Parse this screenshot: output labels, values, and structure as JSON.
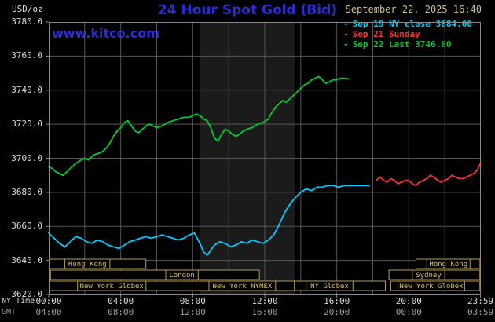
{
  "header": {
    "units_label": "USD/oz",
    "title": "24 Hour Spot Gold (Bid)",
    "datetime": "September 22, 2025 16:40",
    "watermark": "www.kitco.com",
    "legend": [
      {
        "label": "Sep 19 NY close 3684.00",
        "color": "#00ccff"
      },
      {
        "label": "Sep 21 Sunday",
        "color": "#ff3232"
      },
      {
        "label": "Sep 22 Last 3746.60",
        "color": "#00cc33"
      }
    ]
  },
  "axes": {
    "ny_time_label": "NY Time",
    "gmt_label": "GMT",
    "ny_ticks": [
      {
        "hour": 0,
        "label": "00:00"
      },
      {
        "hour": 4,
        "label": "04:00"
      },
      {
        "hour": 8,
        "label": "08:00"
      },
      {
        "hour": 12,
        "label": "12:00"
      },
      {
        "hour": 16,
        "label": "16:00"
      },
      {
        "hour": 20,
        "label": "20:00"
      },
      {
        "hour": 23.983,
        "label": "23:59"
      }
    ],
    "gmt_ticks": [
      {
        "hour": 0,
        "label": "04:00"
      },
      {
        "hour": 4,
        "label": "08:00"
      },
      {
        "hour": 8,
        "label": "12:00"
      },
      {
        "hour": 12,
        "label": "16:00"
      },
      {
        "hour": 16,
        "label": "20:00"
      },
      {
        "hour": 20,
        "label": "00:00"
      },
      {
        "hour": 23.983,
        "label": "03:59"
      }
    ],
    "y_ticks": [
      {
        "value": 3780,
        "label": "3780.0"
      },
      {
        "value": 3760,
        "label": "3760.0"
      },
      {
        "value": 3740,
        "label": "3740.0"
      },
      {
        "value": 3720,
        "label": "3720.0"
      },
      {
        "value": 3700,
        "label": "3700.0"
      },
      {
        "value": 3680,
        "label": "3680.0"
      },
      {
        "value": 3660,
        "label": "3660.0"
      },
      {
        "value": 3640,
        "label": "3640.0"
      },
      {
        "value": 3620,
        "label": "3620.0"
      }
    ]
  },
  "chart_data": {
    "type": "line",
    "title": "24 Hour Spot Gold (Bid)",
    "ylabel": "USD/oz",
    "xlabel": "NY Time (hours)",
    "xlim": [
      0,
      24
    ],
    "ylim": [
      3620,
      3780
    ],
    "x_gridline_hours": [
      2,
      4,
      6,
      8,
      10,
      12,
      14,
      16,
      18,
      20,
      22
    ],
    "grid_color": "#565656",
    "border_color": "#8a8a8a",
    "shaded_region": {
      "start_hour": 8.4,
      "end_hour": 13.65,
      "color": "#1b1b1b"
    },
    "series": [
      {
        "name": "Sep 19 NY close",
        "close_value": 3684.0,
        "color": "#00ccff",
        "points": [
          [
            0,
            3656
          ],
          [
            0.3,
            3653
          ],
          [
            0.6,
            3650
          ],
          [
            0.9,
            3648
          ],
          [
            1.2,
            3651
          ],
          [
            1.5,
            3654
          ],
          [
            1.8,
            3653
          ],
          [
            2.1,
            3651
          ],
          [
            2.4,
            3650
          ],
          [
            2.7,
            3652
          ],
          [
            3,
            3651
          ],
          [
            3.3,
            3649
          ],
          [
            3.6,
            3648
          ],
          [
            3.9,
            3647
          ],
          [
            4.2,
            3649
          ],
          [
            4.5,
            3651
          ],
          [
            4.8,
            3652
          ],
          [
            5.1,
            3653
          ],
          [
            5.4,
            3654
          ],
          [
            5.7,
            3653
          ],
          [
            6,
            3654
          ],
          [
            6.3,
            3655
          ],
          [
            6.6,
            3654
          ],
          [
            6.9,
            3653
          ],
          [
            7.2,
            3652
          ],
          [
            7.5,
            3653
          ],
          [
            7.8,
            3655
          ],
          [
            8.1,
            3656
          ],
          [
            8.4,
            3650
          ],
          [
            8.6,
            3645
          ],
          [
            8.8,
            3643
          ],
          [
            9,
            3646
          ],
          [
            9.2,
            3649
          ],
          [
            9.5,
            3651
          ],
          [
            9.8,
            3650
          ],
          [
            10.1,
            3648
          ],
          [
            10.4,
            3649
          ],
          [
            10.7,
            3651
          ],
          [
            11,
            3650
          ],
          [
            11.3,
            3652
          ],
          [
            11.6,
            3651
          ],
          [
            11.9,
            3650
          ],
          [
            12.2,
            3652
          ],
          [
            12.5,
            3655
          ],
          [
            12.8,
            3661
          ],
          [
            13.1,
            3668
          ],
          [
            13.4,
            3673
          ],
          [
            13.7,
            3677
          ],
          [
            14,
            3680
          ],
          [
            14.3,
            3682
          ],
          [
            14.6,
            3681
          ],
          [
            14.9,
            3683
          ],
          [
            15.2,
            3683
          ],
          [
            15.5,
            3684
          ],
          [
            15.8,
            3684
          ],
          [
            16.1,
            3683
          ],
          [
            16.4,
            3684
          ],
          [
            16.7,
            3684
          ],
          [
            17.1,
            3684
          ],
          [
            17.5,
            3684
          ],
          [
            17.8,
            3684
          ]
        ]
      },
      {
        "name": "Sep 21 Sunday",
        "color": "#ff3232",
        "points": [
          [
            18.2,
            3687
          ],
          [
            18.4,
            3689
          ],
          [
            18.6,
            3687
          ],
          [
            18.8,
            3686
          ],
          [
            19,
            3688
          ],
          [
            19.2,
            3687
          ],
          [
            19.4,
            3685
          ],
          [
            19.6,
            3686
          ],
          [
            19.8,
            3687
          ],
          [
            20,
            3687
          ],
          [
            20.2,
            3685
          ],
          [
            20.4,
            3684
          ],
          [
            20.6,
            3686
          ],
          [
            20.8,
            3687
          ],
          [
            21,
            3688
          ],
          [
            21.2,
            3690
          ],
          [
            21.4,
            3689
          ],
          [
            21.6,
            3687
          ],
          [
            21.8,
            3686
          ],
          [
            22,
            3687
          ],
          [
            22.2,
            3688
          ],
          [
            22.4,
            3690
          ],
          [
            22.6,
            3689
          ],
          [
            22.8,
            3688
          ],
          [
            23,
            3688
          ],
          [
            23.2,
            3689
          ],
          [
            23.4,
            3690
          ],
          [
            23.6,
            3691
          ],
          [
            23.8,
            3693
          ],
          [
            23.98,
            3697
          ]
        ]
      },
      {
        "name": "Sep 22 Last",
        "last_value": 3746.6,
        "color": "#00cc33",
        "points": [
          [
            0,
            3695
          ],
          [
            0.2,
            3694
          ],
          [
            0.4,
            3692
          ],
          [
            0.6,
            3691
          ],
          [
            0.8,
            3690
          ],
          [
            1,
            3692
          ],
          [
            1.2,
            3694
          ],
          [
            1.5,
            3697
          ],
          [
            1.8,
            3699
          ],
          [
            2,
            3700
          ],
          [
            2.2,
            3699
          ],
          [
            2.5,
            3702
          ],
          [
            2.8,
            3703
          ],
          [
            3,
            3704
          ],
          [
            3.2,
            3706
          ],
          [
            3.4,
            3709
          ],
          [
            3.6,
            3713
          ],
          [
            3.8,
            3716
          ],
          [
            4,
            3718
          ],
          [
            4.2,
            3721
          ],
          [
            4.4,
            3722
          ],
          [
            4.6,
            3719
          ],
          [
            4.8,
            3716
          ],
          [
            5,
            3715
          ],
          [
            5.2,
            3717
          ],
          [
            5.4,
            3719
          ],
          [
            5.6,
            3720
          ],
          [
            5.8,
            3719
          ],
          [
            6,
            3718
          ],
          [
            6.3,
            3719
          ],
          [
            6.6,
            3721
          ],
          [
            6.9,
            3722
          ],
          [
            7.2,
            3723
          ],
          [
            7.5,
            3724
          ],
          [
            7.8,
            3724
          ],
          [
            8,
            3725
          ],
          [
            8.2,
            3726
          ],
          [
            8.4,
            3725
          ],
          [
            8.6,
            3723
          ],
          [
            8.8,
            3722
          ],
          [
            9,
            3718
          ],
          [
            9.2,
            3712
          ],
          [
            9.4,
            3710
          ],
          [
            9.6,
            3714
          ],
          [
            9.8,
            3717
          ],
          [
            10,
            3716
          ],
          [
            10.2,
            3714
          ],
          [
            10.4,
            3713
          ],
          [
            10.6,
            3714
          ],
          [
            10.8,
            3716
          ],
          [
            11,
            3717
          ],
          [
            11.3,
            3718
          ],
          [
            11.6,
            3720
          ],
          [
            11.9,
            3721
          ],
          [
            12.2,
            3723
          ],
          [
            12.4,
            3727
          ],
          [
            12.6,
            3730
          ],
          [
            12.8,
            3732
          ],
          [
            13,
            3734
          ],
          [
            13.2,
            3733
          ],
          [
            13.4,
            3735
          ],
          [
            13.6,
            3737
          ],
          [
            13.8,
            3739
          ],
          [
            14,
            3741
          ],
          [
            14.2,
            3743
          ],
          [
            14.4,
            3744
          ],
          [
            14.6,
            3746
          ],
          [
            14.8,
            3747
          ],
          [
            15,
            3748
          ],
          [
            15.2,
            3746
          ],
          [
            15.4,
            3744
          ],
          [
            15.6,
            3745
          ],
          [
            15.8,
            3746
          ],
          [
            16,
            3746
          ],
          [
            16.2,
            3747
          ],
          [
            16.4,
            3747
          ],
          [
            16.67,
            3746.6
          ]
        ]
      }
    ],
    "sessions": {
      "border_color": "#b89d52",
      "text_color": "#d4c070",
      "bands": [
        {
          "row": 0,
          "start": 0.05,
          "end": 5.4,
          "label": "Hong Kong",
          "label_start": 0.9,
          "label_end": 3.4
        },
        {
          "row": 0,
          "start": 20.4,
          "end": 23.95,
          "label": "Hong Kong",
          "label_start": 21.0,
          "label_end": 23.4
        },
        {
          "row": 1,
          "start": 0.1,
          "end": 11.7,
          "label": "London",
          "label_start": 6.5,
          "label_end": 8.3
        },
        {
          "row": 1,
          "start": 18.9,
          "end": 23.95,
          "label": "Sydney",
          "label_start": 20.2,
          "label_end": 22.0
        },
        {
          "row": 2,
          "start": 0.05,
          "end": 8.4,
          "label": "New York Globex",
          "label_start": 1.6,
          "label_end": 5.4
        },
        {
          "row": 2,
          "start": 8.4,
          "end": 13.65,
          "label": "New York NYMEX",
          "label_start": 8.9,
          "label_end": 12.6
        },
        {
          "row": 2,
          "start": 13.65,
          "end": 18.7,
          "label": "NY Globex",
          "label_start": 14.3,
          "label_end": 16.9
        },
        {
          "row": 2,
          "start": 19.0,
          "end": 23.95,
          "label": "New York Globex",
          "label_start": 19.4,
          "label_end": 23.1
        }
      ]
    }
  }
}
